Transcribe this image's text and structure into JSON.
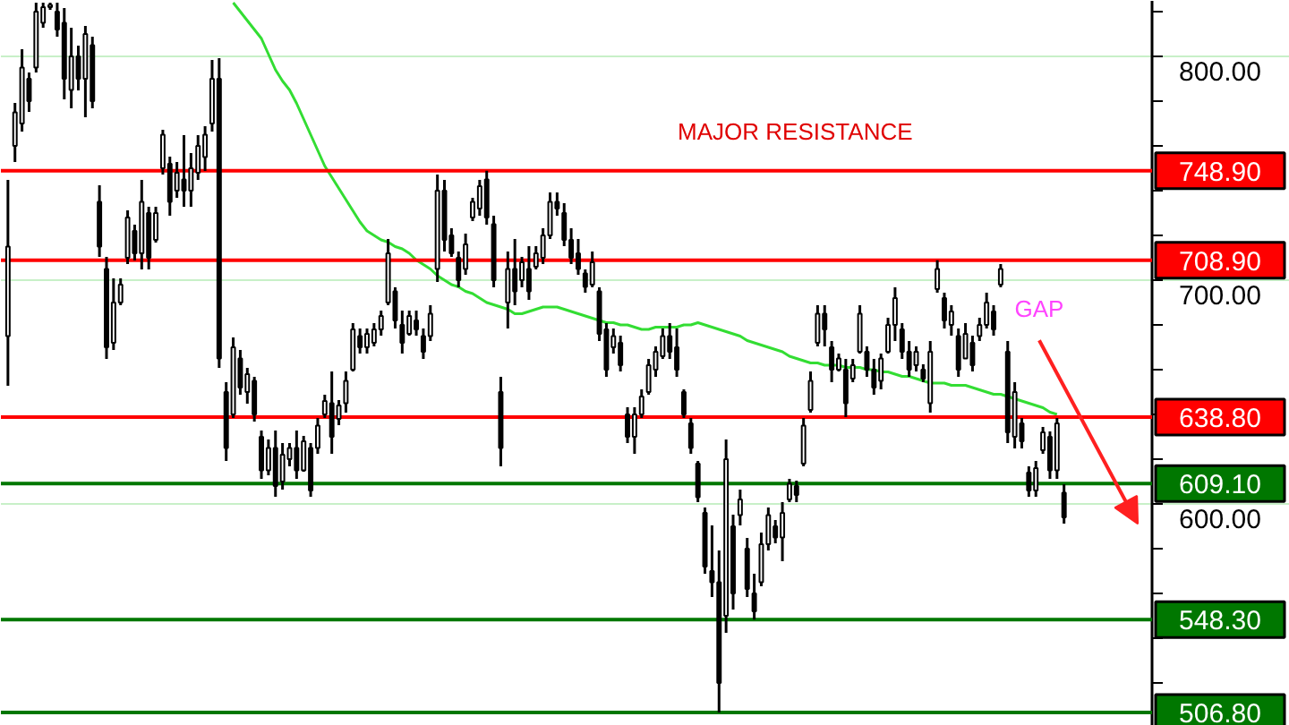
{
  "chart_data": {
    "type": "candlestick",
    "categories": [
      null,
      null,
      null,
      null,
      null,
      null,
      null,
      null,
      null,
      null,
      null,
      null,
      null,
      null,
      null,
      null,
      null,
      null,
      null,
      null,
      null,
      null,
      null,
      null,
      null,
      null,
      null,
      null,
      null,
      null,
      null,
      null,
      null,
      null,
      null,
      null,
      null,
      null,
      null,
      null,
      null,
      null,
      null,
      null,
      null,
      null,
      null,
      null,
      null,
      null,
      null,
      null,
      null,
      null,
      null,
      null,
      null,
      null,
      null,
      null,
      null,
      null,
      null,
      null,
      null,
      null,
      null,
      null,
      null,
      null,
      null,
      null,
      null,
      null,
      null,
      null,
      null,
      null,
      null,
      null,
      null,
      null,
      null,
      null,
      null,
      null,
      null,
      null,
      null,
      null,
      null,
      null,
      null,
      null,
      null,
      null,
      null,
      null,
      null,
      null,
      null,
      null,
      null,
      null,
      null,
      null,
      null,
      null,
      null,
      null,
      null,
      null,
      null,
      null,
      null,
      null,
      null,
      null,
      null,
      null,
      null,
      null,
      null,
      null,
      null,
      null,
      null,
      null,
      null,
      null,
      null,
      null,
      null,
      null,
      null,
      null,
      null,
      null,
      null,
      null,
      null,
      null,
      null,
      null,
      null,
      null,
      null,
      null,
      null,
      null,
      null,
      null,
      null,
      null,
      null,
      null,
      null,
      null,
      null,
      null,
      null,
      null,
      null
    ],
    "ohlc": [
      [
        675,
        744.8,
        652.8,
        715
      ],
      [
        760,
        779.2,
        752.8,
        775
      ],
      [
        770,
        803.2,
        766.4,
        795
      ],
      [
        790,
        792.8,
        775.2,
        780
      ],
      [
        795,
        824,
        792.8,
        820
      ],
      [
        815,
        824,
        812.8,
        822
      ],
      [
        822,
        824,
        820.8,
        823
      ],
      [
        820,
        824,
        808.8,
        812
      ],
      [
        815,
        821.6,
        780.8,
        790
      ],
      [
        785,
        812.8,
        776.8,
        800
      ],
      [
        800,
        804.8,
        784.8,
        790
      ],
      [
        790,
        813.6,
        772.8,
        810
      ],
      [
        805,
        808.8,
        776.8,
        780
      ],
      [
        735,
        742.4,
        710.4,
        715
      ],
      [
        705,
        710.4,
        664.8,
        670
      ],
      [
        672,
        700.8,
        668.8,
        690
      ],
      [
        690,
        700.8,
        688.8,
        698
      ],
      [
        710,
        731.2,
        707.2,
        728
      ],
      [
        722,
        724.8,
        708.8,
        712
      ],
      [
        712,
        744.8,
        704.8,
        735
      ],
      [
        730,
        732.8,
        704.8,
        710
      ],
      [
        718,
        732.8,
        716.8,
        730
      ],
      [
        750,
        767.2,
        747.2,
        765
      ],
      [
        752,
        755.2,
        728.8,
        735
      ],
      [
        740,
        752.8,
        736.8,
        748
      ],
      [
        745,
        764.8,
        732.8,
        740
      ],
      [
        740,
        756.8,
        732.8,
        750
      ],
      [
        748,
        764.8,
        744.8,
        760
      ],
      [
        755,
        768.8,
        748.8,
        765
      ],
      [
        770,
        798.4,
        766.4,
        790
      ],
      [
        790,
        799.2,
        660.8,
        665
      ],
      [
        650,
        654.4,
        619.2,
        625
      ],
      [
        640,
        674.4,
        638.4,
        670
      ],
      [
        665,
        668.8,
        648.8,
        652
      ],
      [
        650,
        660.8,
        644.8,
        658
      ],
      [
        655,
        656.8,
        636.8,
        640
      ],
      [
        630,
        632.8,
        611.2,
        615
      ],
      [
        615,
        628.8,
        612.8,
        625
      ],
      [
        625,
        632.8,
        603.2,
        608
      ],
      [
        610,
        627.2,
        606.4,
        622
      ],
      [
        620,
        627.2,
        616.8,
        625
      ],
      [
        625,
        632.8,
        611.2,
        615
      ],
      [
        615,
        630.4,
        614.4,
        628
      ],
      [
        625,
        627.2,
        603.2,
        606
      ],
      [
        625,
        638.4,
        622.4,
        635
      ],
      [
        640,
        648.8,
        638.4,
        646
      ],
      [
        645,
        659.2,
        622.4,
        630
      ],
      [
        638,
        646.4,
        635.2,
        644
      ],
      [
        645,
        659.2,
        640.8,
        655
      ],
      [
        660,
        680.8,
        659.2,
        678
      ],
      [
        675,
        678.4,
        667.2,
        670
      ],
      [
        670,
        678.4,
        667.2,
        676
      ],
      [
        672,
        680.8,
        670.4,
        678
      ],
      [
        678,
        686.4,
        675.2,
        684
      ],
      [
        690,
        718.4,
        688.8,
        712
      ],
      [
        695,
        696.8,
        678.4,
        682
      ],
      [
        680,
        686.4,
        667.2,
        672
      ],
      [
        676,
        686.4,
        675.2,
        684
      ],
      [
        682,
        686.4,
        675.2,
        678
      ],
      [
        675,
        678.4,
        664.8,
        668
      ],
      [
        675,
        688.8,
        672.8,
        685
      ],
      [
        705,
        747.2,
        699.2,
        740
      ],
      [
        740,
        744.8,
        712.8,
        718
      ],
      [
        720,
        723.2,
        710.4,
        712
      ],
      [
        710,
        712.8,
        696.8,
        700
      ],
      [
        705,
        720.8,
        702.4,
        716
      ],
      [
        728,
        736.8,
        726.4,
        735
      ],
      [
        732,
        744.8,
        728.8,
        742
      ],
      [
        745,
        748.9,
        724.8,
        728
      ],
      [
        725,
        728.8,
        696.8,
        700
      ],
      [
        650,
        656.8,
        616.8,
        625
      ],
      [
        690,
        712.8,
        678.4,
        705
      ],
      [
        705,
        718.4,
        688.8,
        695
      ],
      [
        700,
        710.4,
        696.8,
        708
      ],
      [
        705,
        715.2,
        691.2,
        695
      ],
      [
        706,
        715.2,
        704.8,
        712
      ],
      [
        710,
        723.2,
        707.2,
        720
      ],
      [
        720,
        739.2,
        718.4,
        735
      ],
      [
        735,
        739.2,
        728.8,
        732
      ],
      [
        730,
        734.4,
        715.2,
        718
      ],
      [
        718,
        723.2,
        707.2,
        710
      ],
      [
        712,
        718.4,
        702.4,
        705
      ],
      [
        703,
        704.8,
        694.4,
        697
      ],
      [
        698,
        712.8,
        696.8,
        708
      ],
      [
        695,
        696.8,
        672.8,
        676
      ],
      [
        678,
        680.8,
        656.8,
        660
      ],
      [
        670,
        678.4,
        667.2,
        675
      ],
      [
        672,
        675.2,
        659.2,
        662
      ],
      [
        640,
        643.2,
        627.2,
        630
      ],
      [
        630,
        643.2,
        622.4,
        640
      ],
      [
        640,
        651.2,
        638.4,
        648
      ],
      [
        650,
        664.8,
        648.8,
        662
      ],
      [
        660,
        670.4,
        656.8,
        668
      ],
      [
        666,
        678.4,
        664.8,
        675
      ],
      [
        675,
        680.8,
        664.8,
        668
      ],
      [
        670,
        678.4,
        656.8,
        660
      ],
      [
        650,
        651.2,
        638.4,
        640
      ],
      [
        636,
        638.4,
        622.4,
        625
      ],
      [
        618,
        619.2,
        600.8,
        603
      ],
      [
        596,
        598.4,
        568.8,
        572
      ],
      [
        570,
        590.4,
        558.4,
        565
      ],
      [
        565,
        579.2,
        506.8,
        520
      ],
      [
        550,
        628.8,
        542.4,
        620
      ],
      [
        590,
        595.2,
        552.8,
        560
      ],
      [
        595,
        606.4,
        590.4,
        602
      ],
      [
        580,
        584.8,
        558.4,
        562
      ],
      [
        560,
        568.8,
        548.3,
        552
      ],
      [
        565,
        587.2,
        563.2,
        582
      ],
      [
        582,
        598.4,
        579.2,
        595
      ],
      [
        590,
        592.8,
        582.4,
        585
      ],
      [
        585,
        600.8,
        574.4,
        596
      ],
      [
        602,
        611.2,
        600.8,
        609
      ],
      [
        608,
        610.4,
        600.8,
        604
      ],
      [
        618,
        638.4,
        616.8,
        635
      ],
      [
        642,
        659.2,
        640.8,
        655
      ],
      [
        672,
        688.8,
        670.4,
        685
      ],
      [
        685,
        688.8,
        670.4,
        678
      ],
      [
        670,
        672.8,
        654.4,
        660
      ],
      [
        660,
        667.2,
        659.2,
        665
      ],
      [
        660,
        664.8,
        638.8,
        645
      ],
      [
        656,
        664.8,
        654.4,
        662
      ],
      [
        668,
        688.8,
        667.2,
        685
      ],
      [
        668,
        670.4,
        656.8,
        660
      ],
      [
        660,
        664.8,
        648.8,
        652
      ],
      [
        655,
        667.2,
        651.2,
        665
      ],
      [
        668,
        683.2,
        667.2,
        680
      ],
      [
        680,
        696.8,
        672.8,
        692
      ],
      [
        678,
        680.8,
        664.8,
        668
      ],
      [
        668,
        672.8,
        656.8,
        660
      ],
      [
        662,
        670.4,
        659.2,
        668
      ],
      [
        660,
        662.4,
        654.4,
        656
      ],
      [
        645,
        672.8,
        640.8,
        668
      ],
      [
        696,
        708.9,
        694.4,
        705
      ],
      [
        692,
        694.4,
        678.4,
        682
      ],
      [
        680,
        688.8,
        675.2,
        686
      ],
      [
        675,
        678.4,
        656.8,
        660
      ],
      [
        665,
        680.8,
        664.8,
        676
      ],
      [
        672,
        675.2,
        659.2,
        662
      ],
      [
        675,
        683.2,
        672.8,
        680
      ],
      [
        680,
        694.4,
        678.4,
        690
      ],
      [
        686,
        688.8,
        675.2,
        678
      ],
      [
        698,
        707.2,
        696.8,
        705
      ],
      [
        668,
        672.8,
        627.2,
        632
      ],
      [
        630,
        654.4,
        624.8,
        650
      ],
      [
        636,
        638.4,
        624.8,
        628
      ],
      [
        614,
        616.8,
        603.2,
        606
      ],
      [
        606,
        619.2,
        603.2,
        616
      ],
      [
        624,
        634.4,
        622.4,
        632
      ],
      [
        630,
        632.4,
        611.2,
        615
      ],
      [
        615,
        638.4,
        611.2,
        636
      ],
      [
        605,
        608.8,
        591.2,
        594
      ],
      null,
      null,
      null,
      null,
      null,
      null,
      null,
      null,
      null,
      null,
      null,
      null
    ],
    "series": [
      {
        "type": "line",
        "color": "#33dd33",
        "values": [
          null,
          null,
          null,
          null,
          null,
          null,
          null,
          null,
          null,
          null,
          null,
          null,
          null,
          null,
          null,
          null,
          null,
          null,
          null,
          null,
          null,
          null,
          null,
          null,
          null,
          null,
          null,
          null,
          null,
          null,
          null,
          null,
          824,
          820,
          816,
          812,
          808,
          801,
          794,
          789,
          785,
          779,
          772,
          765,
          758,
          751,
          746,
          741,
          736,
          731,
          726,
          722,
          720,
          718,
          717,
          715,
          714,
          712,
          709,
          707,
          705,
          702,
          700,
          698,
          697,
          695,
          694,
          692,
          690,
          689,
          688,
          687,
          685,
          685,
          686,
          687,
          688,
          688,
          688,
          687,
          686,
          685,
          684,
          683,
          682,
          681,
          681,
          680,
          680,
          679,
          678,
          678,
          679,
          679,
          679,
          679,
          680,
          680,
          681,
          680,
          679,
          678,
          677,
          676,
          675,
          673,
          672,
          671,
          670,
          669,
          668,
          666,
          665,
          664,
          663,
          663,
          662,
          662,
          662,
          661,
          661,
          661,
          660,
          660,
          659,
          659,
          658,
          657,
          657,
          656,
          655,
          654,
          654,
          654,
          653,
          653,
          653,
          652,
          651,
          650,
          649,
          649,
          648,
          647,
          646,
          645,
          644,
          643,
          641,
          640,
          null,
          null,
          null,
          null,
          null,
          null,
          null,
          null,
          null,
          null,
          null,
          null,
          null
        ]
      }
    ],
    "ylim": [
      500.8,
      824.8
    ],
    "yticks": [
      {
        "value": 520,
        "label": null
      },
      {
        "value": 540,
        "label": null
      },
      {
        "value": 560,
        "label": null
      },
      {
        "value": 580,
        "label": null
      },
      {
        "value": 600,
        "label": "600.00"
      },
      {
        "value": 620,
        "label": null
      },
      {
        "value": 640,
        "label": null
      },
      {
        "value": 660,
        "label": null
      },
      {
        "value": 680,
        "label": null
      },
      {
        "value": 700,
        "label": "700.00"
      },
      {
        "value": 720,
        "label": null
      },
      {
        "value": 740,
        "label": null
      },
      {
        "value": 760,
        "label": null
      },
      {
        "value": 780,
        "label": null
      },
      {
        "value": 800,
        "label": "800.00"
      },
      {
        "value": 820,
        "label": null
      }
    ],
    "tick_labels": "y",
    "grid": "y",
    "ref_lines": [
      {
        "axis": "y",
        "value": 748.9,
        "label": "748.90",
        "color": "#ff0000"
      },
      {
        "axis": "y",
        "value": 708.9,
        "label": "708.90",
        "color": "#ff0000"
      },
      {
        "axis": "y",
        "value": 638.8,
        "label": "638.80",
        "color": "#ff0000"
      },
      {
        "axis": "y",
        "value": 609.1,
        "label": "609.10",
        "color": "#007700"
      },
      {
        "axis": "y",
        "value": 548.3,
        "label": "548.30",
        "color": "#007700"
      },
      {
        "axis": "y",
        "value": 506.8,
        "label": "506.80",
        "color": "#007700"
      }
    ],
    "annotations": [
      "MAJOR RESISTANCE",
      "GAP"
    ]
  }
}
